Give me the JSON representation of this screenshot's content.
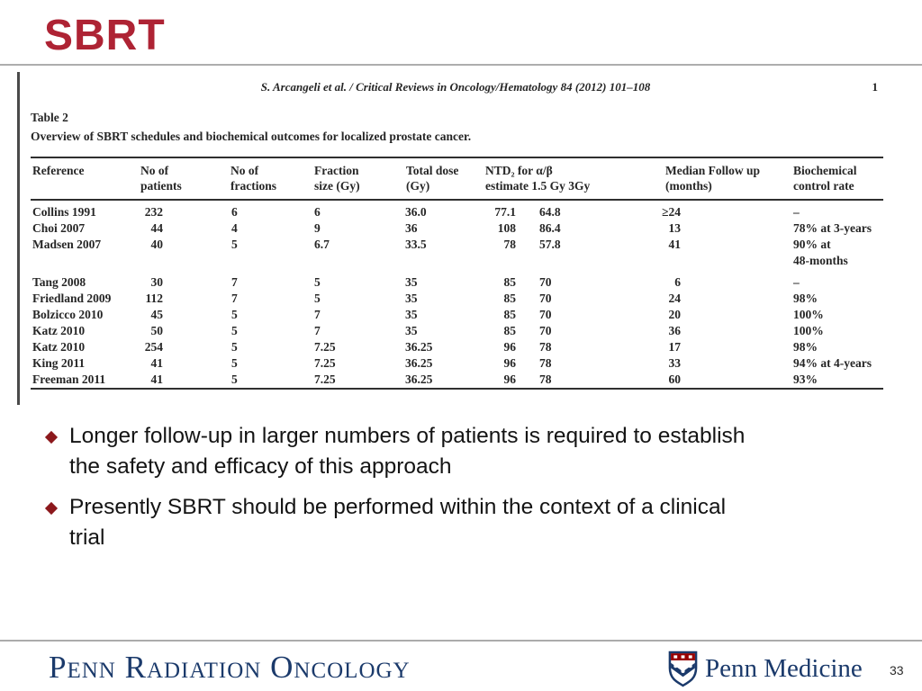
{
  "slide": {
    "title": "SBRT",
    "page_number": "33"
  },
  "article": {
    "running_head": "S. Arcangeli et al. / Critical Reviews in Oncology/Hematology 84 (2012) 101–108",
    "running_page": "1",
    "table_label": "Table 2",
    "table_caption": "Overview of SBRT schedules and biochemical outcomes for localized prostate cancer.",
    "table": {
      "headers": {
        "reference": "Reference",
        "patients": "No of\npatients",
        "fractions": "No of\nfractions",
        "fraction_size": "Fraction\nsize (Gy)",
        "total_dose": "Total dose\n(Gy)",
        "ntd": "NTD₂ for α/β\nestimate 1.5 Gy 3Gy",
        "followup": "Median Follow up\n(months)",
        "control": "Biochemical\ncontrol rate"
      },
      "row_groups": [
        [
          {
            "reference": "Collins 1991",
            "patients": "232",
            "fractions": "6",
            "fraction_size": "6",
            "total_dose": "36.0",
            "ntd15": "77.1",
            "ntd3": "64.8",
            "followup": "≥24",
            "control": "–"
          },
          {
            "reference": "Choi 2007",
            "patients": "44",
            "fractions": "4",
            "fraction_size": "9",
            "total_dose": "36",
            "ntd15": "108",
            "ntd3": "86.4",
            "followup": "13",
            "control": "78% at 3-years"
          },
          {
            "reference": "Madsen 2007",
            "patients": "40",
            "fractions": "5",
            "fraction_size": "6.7",
            "total_dose": "33.5",
            "ntd15": "78",
            "ntd3": "57.8",
            "followup": "41",
            "control": "90% at\n48-months"
          }
        ],
        [
          {
            "reference": "Tang 2008",
            "patients": "30",
            "fractions": "7",
            "fraction_size": "5",
            "total_dose": "35",
            "ntd15": "85",
            "ntd3": "70",
            "followup": "6",
            "control": "–"
          },
          {
            "reference": "Friedland 2009",
            "patients": "112",
            "fractions": "7",
            "fraction_size": "5",
            "total_dose": "35",
            "ntd15": "85",
            "ntd3": "70",
            "followup": "24",
            "control": "98%"
          },
          {
            "reference": "Bolzicco 2010",
            "patients": "45",
            "fractions": "5",
            "fraction_size": "7",
            "total_dose": "35",
            "ntd15": "85",
            "ntd3": "70",
            "followup": "20",
            "control": "100%"
          },
          {
            "reference": "Katz 2010",
            "patients": "50",
            "fractions": "5",
            "fraction_size": "7",
            "total_dose": "35",
            "ntd15": "85",
            "ntd3": "70",
            "followup": "36",
            "control": "100%"
          },
          {
            "reference": "Katz 2010",
            "patients": "254",
            "fractions": "5",
            "fraction_size": "7.25",
            "total_dose": "36.25",
            "ntd15": "96",
            "ntd3": "78",
            "followup": "17",
            "control": "98%"
          },
          {
            "reference": "King 2011",
            "patients": "41",
            "fractions": "5",
            "fraction_size": "7.25",
            "total_dose": "36.25",
            "ntd15": "96",
            "ntd3": "78",
            "followup": "33",
            "control": "94% at 4-years"
          },
          {
            "reference": "Freeman 2011",
            "patients": "41",
            "fractions": "5",
            "fraction_size": "7.25",
            "total_dose": "36.25",
            "ntd15": "96",
            "ntd3": "78",
            "followup": "60",
            "control": "93%"
          }
        ]
      ]
    }
  },
  "bullets": [
    "Longer follow-up in larger numbers of patients is required to establish\nthe safety and efficacy of this approach",
    "Presently SBRT should be performed within the context of a clinical\ntrial"
  ],
  "footer": {
    "department": "Penn Radiation Oncology",
    "brand": "Penn Medicine"
  },
  "colors": {
    "title_red": "#AE2334",
    "bullet_red": "#8C181C",
    "penn_blue": "#1B3A6B",
    "shield_red": "#990000",
    "rule_gray": "#ABABAB"
  }
}
